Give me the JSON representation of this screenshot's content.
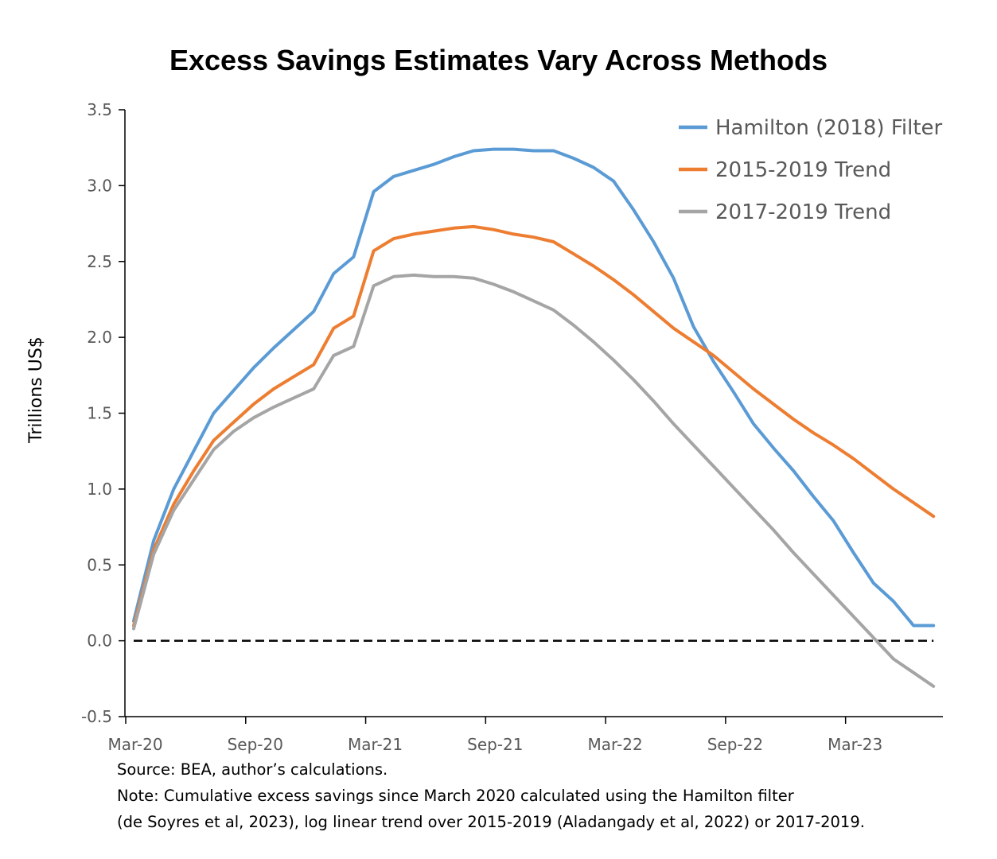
{
  "chart_data": {
    "type": "line",
    "title": "Excess Savings Estimates Vary Across Methods",
    "ylabel": "Trillions US$",
    "xlabel": "",
    "ylim": [
      -0.5,
      3.5
    ],
    "yticks": [
      "3.5",
      "3.0",
      "2.5",
      "2.0",
      "1.5",
      "1.0",
      "0.5",
      "0.0",
      "-0.5"
    ],
    "ytick_values": [
      3.5,
      3.0,
      2.5,
      2.0,
      1.5,
      1.0,
      0.5,
      0.0,
      -0.5
    ],
    "xticks": [
      "Mar-20",
      "Sep-20",
      "Mar-21",
      "Sep-21",
      "Mar-22",
      "Sep-22",
      "Mar-23"
    ],
    "x": [
      "Mar-20",
      "Apr-20",
      "May-20",
      "Jun-20",
      "Jul-20",
      "Aug-20",
      "Sep-20",
      "Oct-20",
      "Nov-20",
      "Dec-20",
      "Jan-21",
      "Feb-21",
      "Mar-21",
      "Apr-21",
      "May-21",
      "Jun-21",
      "Jul-21",
      "Aug-21",
      "Sep-21",
      "Oct-21",
      "Nov-21",
      "Dec-21",
      "Jan-22",
      "Feb-22",
      "Mar-22",
      "Apr-22",
      "May-22",
      "Jun-22",
      "Jul-22",
      "Aug-22",
      "Sep-22",
      "Oct-22",
      "Nov-22",
      "Dec-22",
      "Jan-23",
      "Feb-23",
      "Mar-23",
      "Apr-23",
      "May-23",
      "Jun-23",
      "Jul-23"
    ],
    "series": [
      {
        "name": "Hamilton (2018) Filter",
        "color": "#5b9bd5",
        "values": [
          0.13,
          0.66,
          1.0,
          1.25,
          1.5,
          1.65,
          1.8,
          1.93,
          2.05,
          2.17,
          2.42,
          2.53,
          2.96,
          3.06,
          3.1,
          3.14,
          3.19,
          3.23,
          3.24,
          3.24,
          3.23,
          3.23,
          3.18,
          3.12,
          3.03,
          2.84,
          2.63,
          2.39,
          2.07,
          1.84,
          1.64,
          1.43,
          1.27,
          1.12,
          0.95,
          0.79,
          0.58,
          0.38,
          0.26,
          0.1,
          0.1
        ]
      },
      {
        "name": "2015-2019 Trend",
        "color": "#ed7d31",
        "values": [
          0.1,
          0.6,
          0.9,
          1.12,
          1.32,
          1.44,
          1.56,
          1.66,
          1.74,
          1.82,
          2.06,
          2.14,
          2.57,
          2.65,
          2.68,
          2.7,
          2.72,
          2.73,
          2.71,
          2.68,
          2.66,
          2.63,
          2.55,
          2.47,
          2.38,
          2.28,
          2.17,
          2.06,
          1.97,
          1.88,
          1.77,
          1.66,
          1.56,
          1.46,
          1.37,
          1.29,
          1.2,
          1.1,
          1.0,
          0.91,
          0.82
        ]
      },
      {
        "name": "2017-2019 Trend",
        "color": "#a5a5a5",
        "values": [
          0.08,
          0.57,
          0.86,
          1.06,
          1.26,
          1.38,
          1.47,
          1.54,
          1.6,
          1.66,
          1.88,
          1.94,
          2.34,
          2.4,
          2.41,
          2.4,
          2.4,
          2.39,
          2.35,
          2.3,
          2.24,
          2.18,
          2.08,
          1.97,
          1.85,
          1.72,
          1.58,
          1.43,
          1.29,
          1.15,
          1.01,
          0.87,
          0.73,
          0.58,
          0.44,
          0.3,
          0.16,
          0.02,
          -0.12,
          -0.21,
          -0.3
        ]
      }
    ],
    "reference_line": {
      "y": 0.0,
      "style": "dashed",
      "color": "#000000"
    },
    "legend_position": "top-right",
    "grid": false
  },
  "footnotes": {
    "source": "Source: BEA, author’s calculations.",
    "note_line_1": "Note: Cumulative excess savings since March 2020 calculated using the Hamilton filter",
    "note_line_2": "(de Soyres et al, 2023), log linear trend over 2015-2019 (Aladangady et al, 2022) or 2017-2019."
  }
}
